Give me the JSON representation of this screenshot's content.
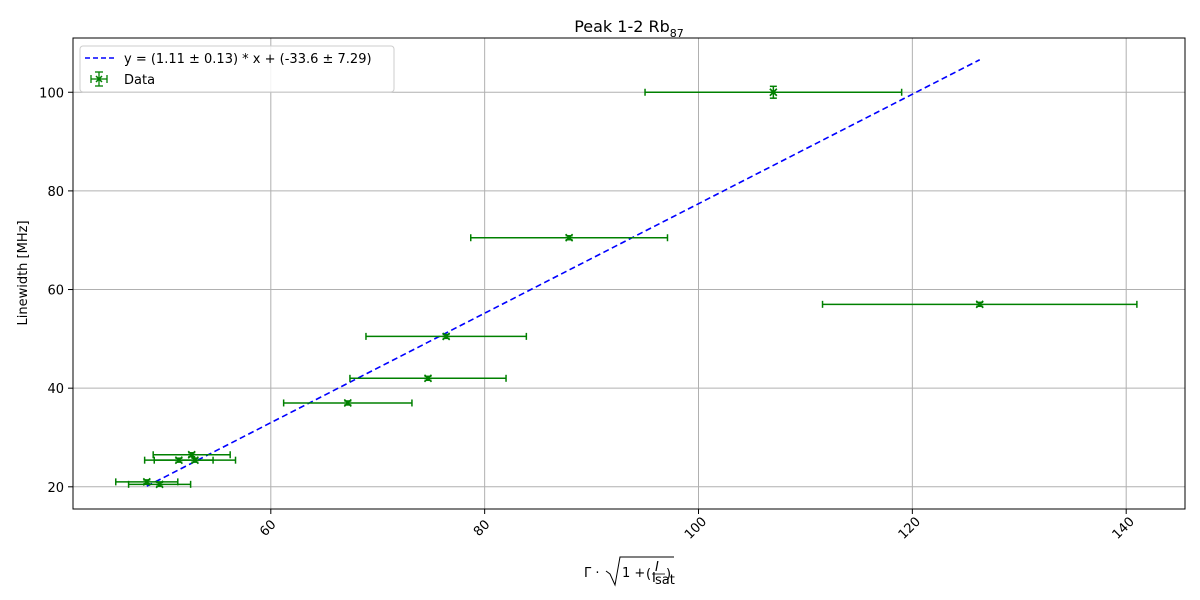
{
  "chart_data": {
    "type": "scatter",
    "title": "Peak 1-2 Rb",
    "title_subscript": "87",
    "xlabel": "Γ · √(1 + (I/I_sat))",
    "ylabel": "Linewidth [MHz]",
    "xlim": [
      41.5,
      145.5
    ],
    "ylim": [
      15.5,
      111
    ],
    "xticks": [
      60,
      80,
      100,
      120,
      140
    ],
    "yticks": [
      20,
      40,
      60,
      80,
      100
    ],
    "grid": true,
    "legend_position": "top-left",
    "colors": {
      "data": "#008000",
      "fit": "#0000ff",
      "grid": "#b0b0b0"
    },
    "series": [
      {
        "name": "Data",
        "kind": "errorbar",
        "points": [
          {
            "x": 48.4,
            "y": 21.0,
            "xerr": 2.9,
            "yerr": 0.4
          },
          {
            "x": 49.6,
            "y": 20.5,
            "xerr": 2.9,
            "yerr": 0.4
          },
          {
            "x": 51.4,
            "y": 25.4,
            "xerr": 3.2,
            "yerr": 0.4
          },
          {
            "x": 52.9,
            "y": 25.4,
            "xerr": 3.8,
            "yerr": 0.4
          },
          {
            "x": 52.6,
            "y": 26.5,
            "xerr": 3.6,
            "yerr": 0.4
          },
          {
            "x": 67.2,
            "y": 37.0,
            "xerr": 6.0,
            "yerr": 0.4
          },
          {
            "x": 74.7,
            "y": 42.0,
            "xerr": 7.3,
            "yerr": 0.4
          },
          {
            "x": 76.4,
            "y": 50.5,
            "xerr": 7.5,
            "yerr": 0.4
          },
          {
            "x": 87.9,
            "y": 70.5,
            "xerr": 9.2,
            "yerr": 0.4
          },
          {
            "x": 107.0,
            "y": 100.0,
            "xerr": 12.0,
            "yerr": 1.2
          },
          {
            "x": 126.3,
            "y": 57.0,
            "xerr": 14.7,
            "yerr": 0.4
          }
        ]
      },
      {
        "name": "y = (1.11 ± 0.13) * x + (-33.6 ± 7.29)",
        "kind": "fit-line",
        "slope": 1.11,
        "intercept": -33.6,
        "x_range": [
          48.4,
          126.3
        ]
      }
    ]
  }
}
